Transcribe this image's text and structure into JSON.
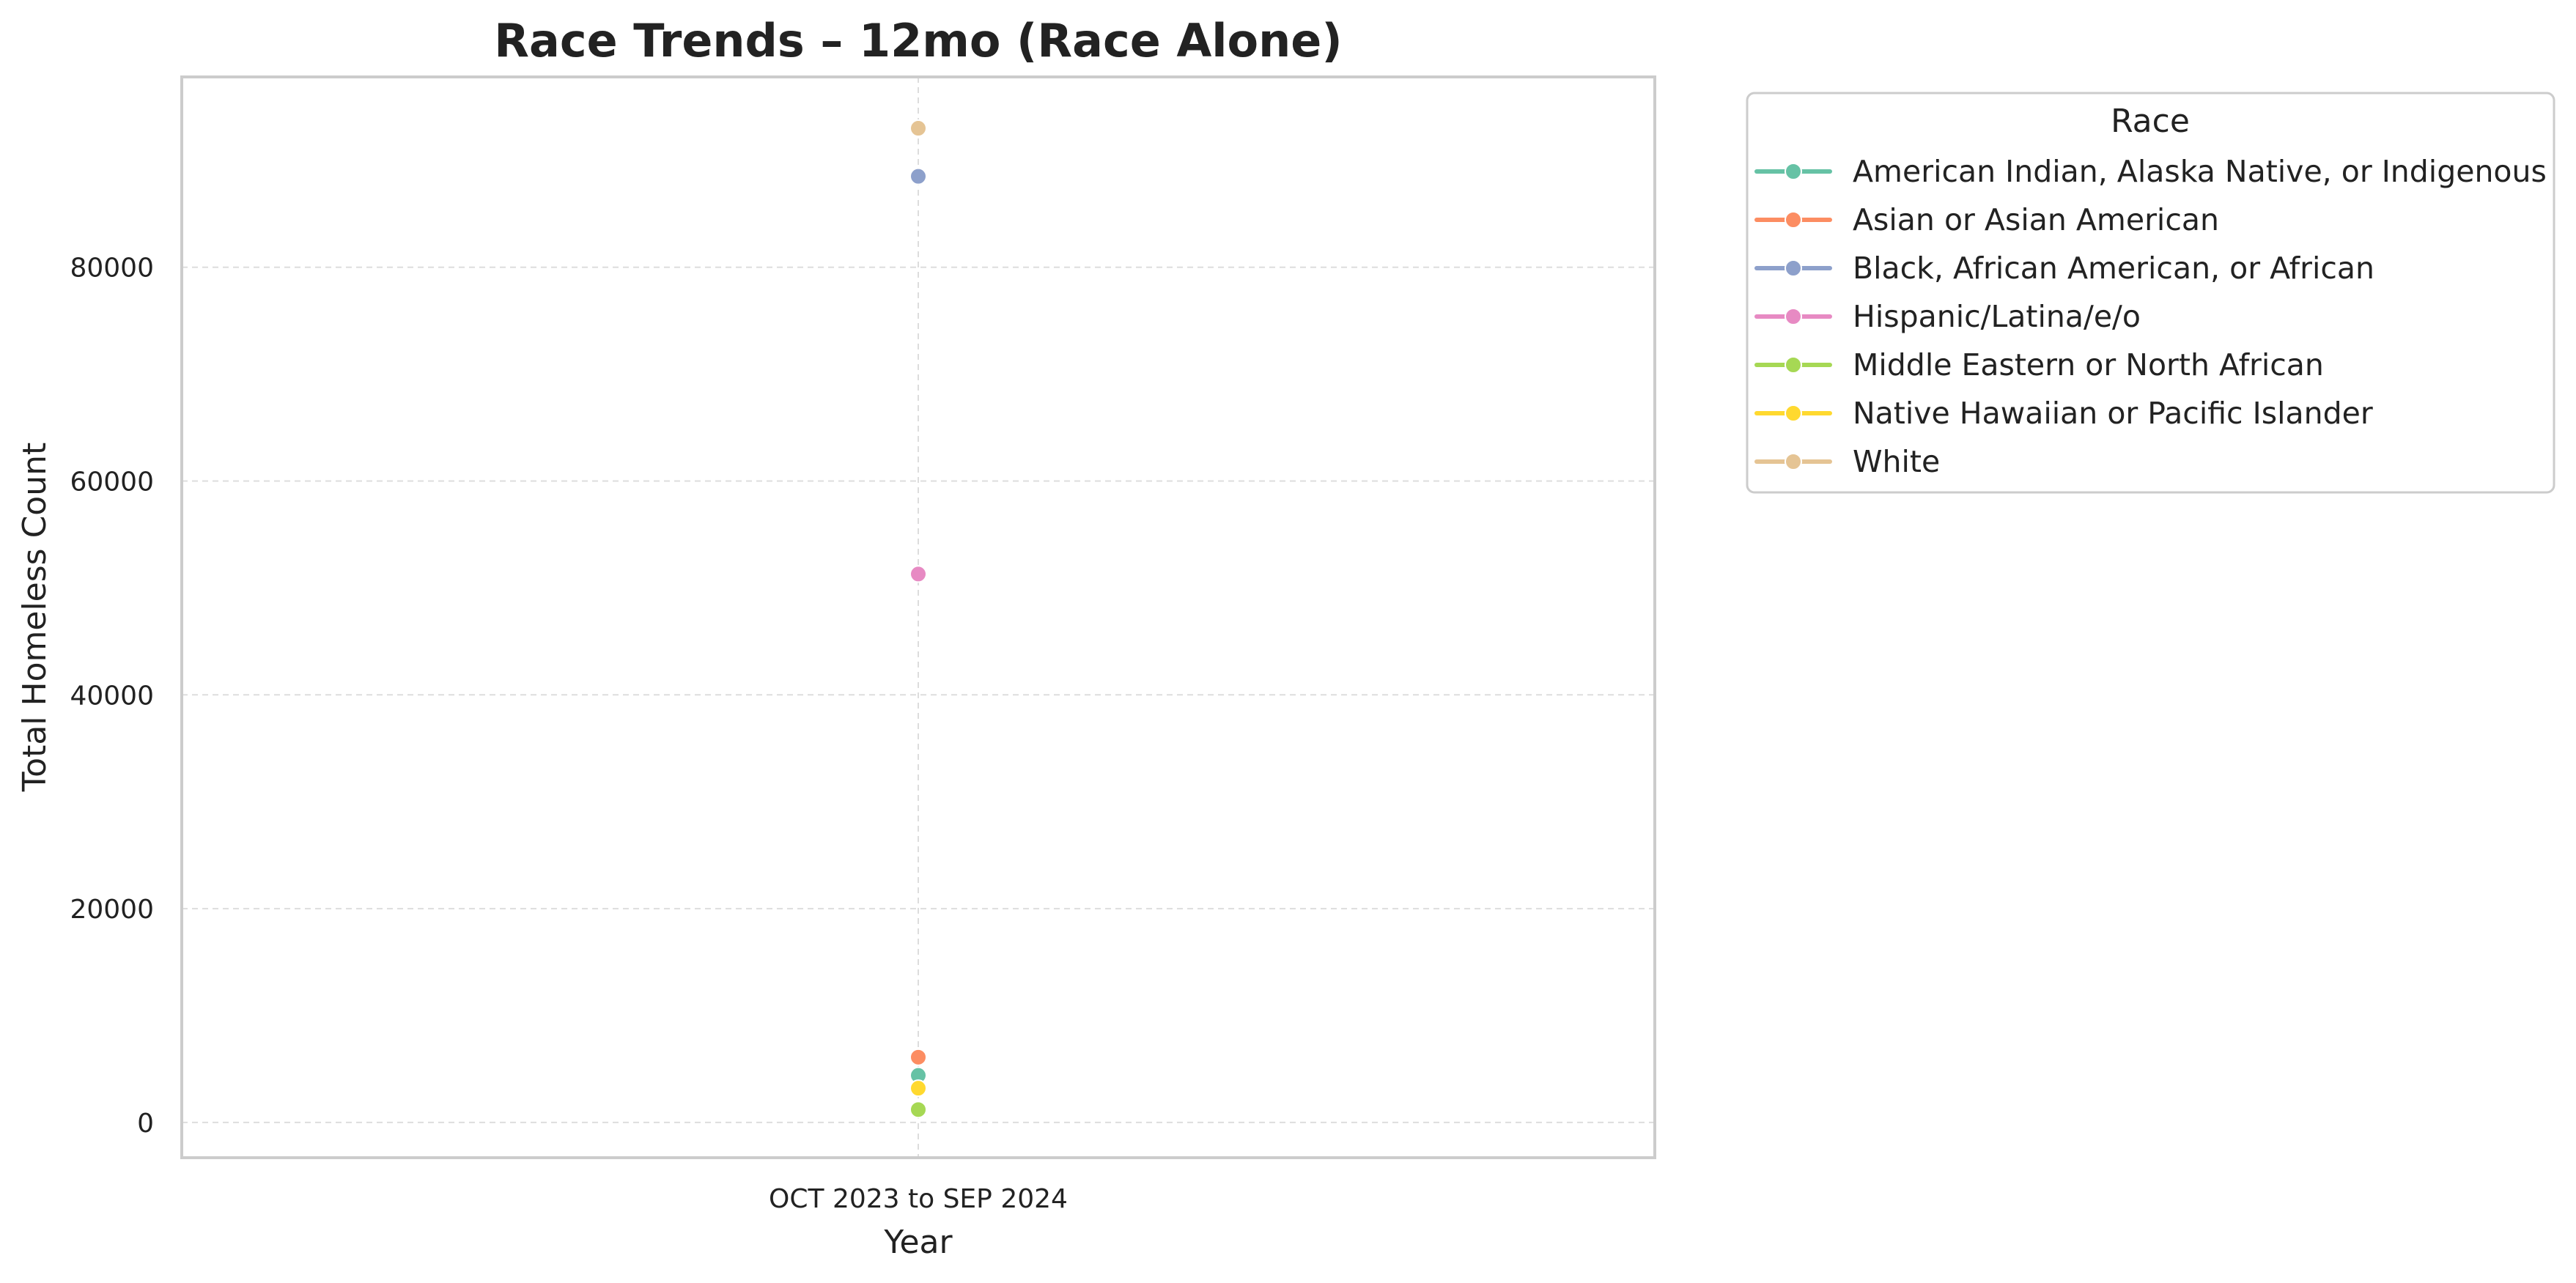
{
  "chart_data": {
    "type": "line",
    "title": "Race Trends – 12mo (Race Alone)",
    "xlabel": "Year",
    "ylabel": "Total Homeless Count",
    "categories": [
      "OCT 2023 to SEP 2024"
    ],
    "ylim": [
      -3300,
      97800
    ],
    "yticks": [
      0,
      20000,
      40000,
      60000,
      80000
    ],
    "grid": true,
    "legend": {
      "title": "Race",
      "placement": "outside-right-top"
    },
    "series": [
      {
        "name": "American Indian, Alaska Native, or Indigenous",
        "color": "#66c2a5",
        "values": [
          4400
        ]
      },
      {
        "name": "Asian or Asian American",
        "color": "#fc8d62",
        "values": [
          6100
        ]
      },
      {
        "name": "Black, African American, or African",
        "color": "#8da0cb",
        "values": [
          88500
        ]
      },
      {
        "name": "Hispanic/Latina/e/o",
        "color": "#e78ac3",
        "values": [
          51300
        ]
      },
      {
        "name": "Middle Eastern or North African",
        "color": "#a6d854",
        "values": [
          1200
        ]
      },
      {
        "name": "Native Hawaiian or Pacific Islander",
        "color": "#ffd92f",
        "values": [
          3200
        ]
      },
      {
        "name": "White",
        "color": "#e5c494",
        "values": [
          93000
        ]
      }
    ]
  }
}
